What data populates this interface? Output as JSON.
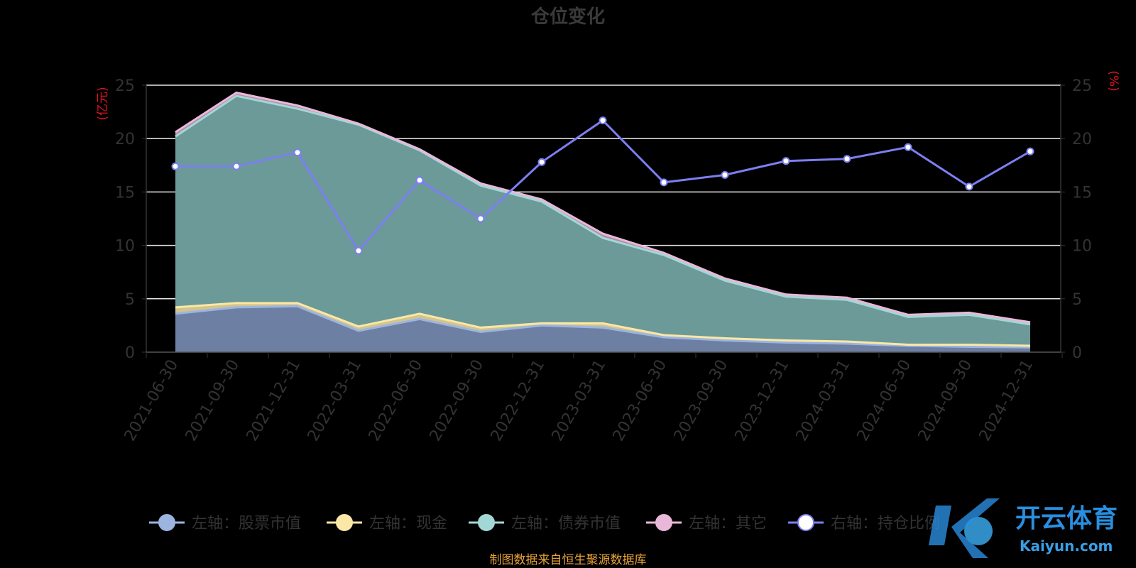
{
  "chart_data": {
    "type": "area",
    "title": "仓位变化",
    "left_unit": "(亿元)",
    "right_unit": "(%)",
    "categories": [
      "2021-06-30",
      "2021-09-30",
      "2021-12-31",
      "2022-03-31",
      "2022-06-30",
      "2022-09-30",
      "2022-12-31",
      "2023-03-31",
      "2023-06-30",
      "2023-09-30",
      "2023-12-31",
      "2024-03-31",
      "2024-06-30",
      "2024-09-30",
      "2024-12-31"
    ],
    "y_left": {
      "min": 0,
      "max": 25,
      "ticks": [
        0,
        5,
        10,
        15,
        20,
        25
      ]
    },
    "y_right": {
      "min": 0,
      "max": 25,
      "ticks": [
        0,
        5,
        10,
        15,
        20,
        25
      ]
    },
    "stacked": true,
    "grid": true,
    "legend_position": "bottom",
    "series": [
      {
        "name": "左轴：股票市值",
        "axis": "left",
        "color": "#9bb4e0",
        "values": [
          3.6,
          4.2,
          4.3,
          2.0,
          3.1,
          1.9,
          2.5,
          2.3,
          1.4,
          1.1,
          0.9,
          0.8,
          0.6,
          0.5,
          0.45
        ]
      },
      {
        "name": "左轴：现金",
        "axis": "left",
        "color": "#fbe7a6",
        "values": [
          0.6,
          0.4,
          0.3,
          0.4,
          0.5,
          0.4,
          0.2,
          0.4,
          0.2,
          0.2,
          0.2,
          0.2,
          0.1,
          0.2,
          0.15
        ]
      },
      {
        "name": "左轴：债券市值",
        "axis": "left",
        "color": "#a1d8d6",
        "values": [
          16.0,
          19.4,
          18.2,
          18.9,
          15.3,
          13.3,
          11.4,
          8.0,
          7.5,
          5.4,
          4.1,
          3.9,
          2.6,
          2.8,
          2.0
        ]
      },
      {
        "name": "左轴：其它",
        "axis": "left",
        "color": "#e9b8d8",
        "values": [
          0.4,
          0.3,
          0.3,
          0.1,
          0.1,
          0.2,
          0.2,
          0.4,
          0.2,
          0.2,
          0.2,
          0.2,
          0.2,
          0.2,
          0.2
        ]
      },
      {
        "name": "右轴：持仓比例",
        "axis": "right",
        "color": "#7b7ff0",
        "values": [
          17.4,
          17.4,
          18.7,
          9.5,
          16.1,
          12.5,
          17.8,
          21.7,
          15.9,
          16.6,
          17.9,
          18.1,
          19.2,
          15.5,
          18.8
        ]
      }
    ],
    "source": "制图数据来自恒生聚源数据库"
  },
  "watermark": {
    "cn": "开云体育",
    "en": "Kaiyun.com"
  }
}
